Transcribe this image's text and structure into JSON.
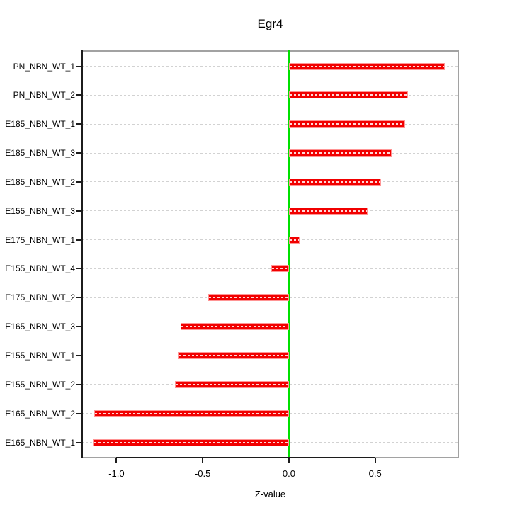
{
  "chart_data": {
    "type": "bar",
    "orientation": "horizontal",
    "title": "Egr4",
    "xlabel": "Z-value",
    "ylabel": "",
    "categories": [
      "PN_NBN_WT_1",
      "PN_NBN_WT_2",
      "E185_NBN_WT_1",
      "E185_NBN_WT_3",
      "E185_NBN_WT_2",
      "E155_NBN_WT_3",
      "E175_NBN_WT_1",
      "E155_NBN_WT_4",
      "E175_NBN_WT_2",
      "E165_NBN_WT_3",
      "E155_NBN_WT_1",
      "E155_NBN_WT_2",
      "E165_NBN_WT_2",
      "E165_NBN_WT_1"
    ],
    "values": [
      0.903,
      0.69,
      0.675,
      0.594,
      0.536,
      0.456,
      0.063,
      -0.102,
      -0.468,
      -0.626,
      -0.64,
      -0.659,
      -1.128,
      -1.133
    ],
    "x_ticks": [
      -1.0,
      -0.5,
      0.0,
      0.5
    ],
    "x_tick_labels": [
      "-1.0",
      "-0.5",
      "0.0",
      "0.5"
    ],
    "xlim": [
      -1.203,
      0.986
    ],
    "zero_line": 0,
    "grid": true,
    "legend": null,
    "colors": {
      "bar_fill": "#f10000",
      "bar_border": "#ff9494",
      "zero_line": "#00e000",
      "grid": "#d2d2d2",
      "box_border": "#a2a2a2",
      "axis": "#1c1c1c",
      "text": "#000000",
      "background": "#ffffff"
    }
  }
}
